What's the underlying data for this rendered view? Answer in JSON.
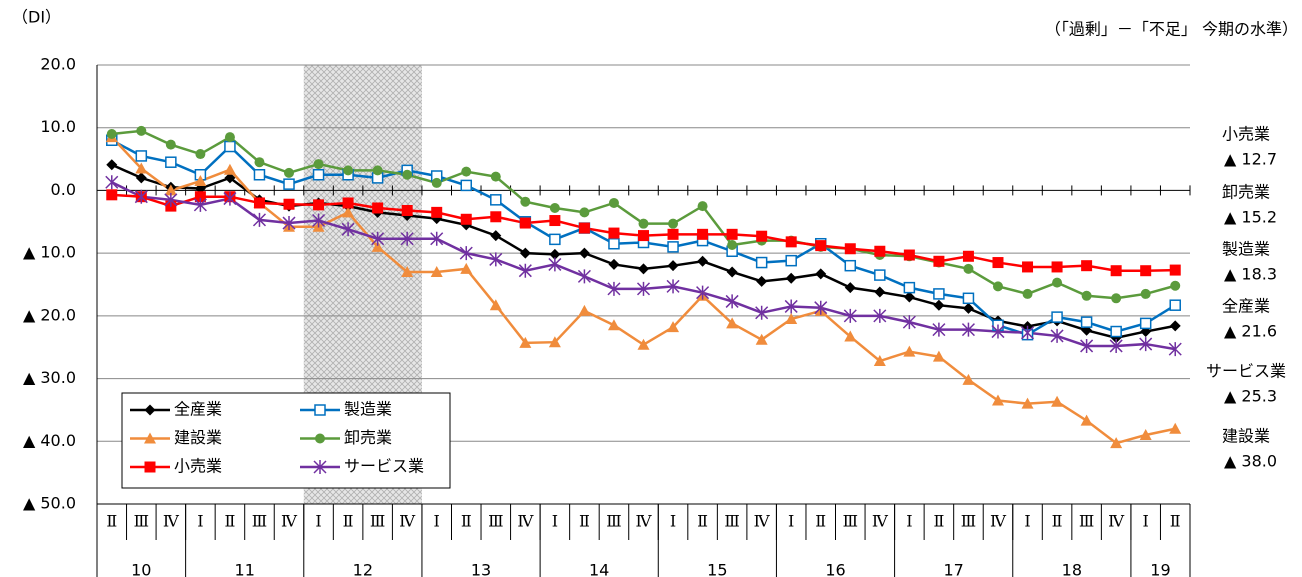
{
  "chart_data": {
    "type": "line",
    "unit_label": "（DI）",
    "note": "（「過剰」－「不足」 今期の水準）",
    "categories": [
      "Ⅱ",
      "Ⅲ",
      "Ⅳ",
      "Ⅰ",
      "Ⅱ",
      "Ⅲ",
      "Ⅳ",
      "Ⅰ",
      "Ⅱ",
      "Ⅲ",
      "Ⅳ",
      "Ⅰ",
      "Ⅱ",
      "Ⅲ",
      "Ⅳ",
      "Ⅰ",
      "Ⅱ",
      "Ⅲ",
      "Ⅳ",
      "Ⅰ",
      "Ⅱ",
      "Ⅲ",
      "Ⅳ",
      "Ⅰ",
      "Ⅱ",
      "Ⅲ",
      "Ⅳ",
      "Ⅰ",
      "Ⅱ",
      "Ⅲ",
      "Ⅳ",
      "Ⅰ",
      "Ⅱ",
      "Ⅲ",
      "Ⅳ",
      "Ⅰ",
      "Ⅱ"
    ],
    "x_groups": [
      {
        "label": "10",
        "span": 3
      },
      {
        "label": "11",
        "span": 4
      },
      {
        "label": "12",
        "span": 4
      },
      {
        "label": "13",
        "span": 4
      },
      {
        "label": "14",
        "span": 4
      },
      {
        "label": "15",
        "span": 4
      },
      {
        "label": "16",
        "span": 4
      },
      {
        "label": "17",
        "span": 4
      },
      {
        "label": "18",
        "span": 4
      },
      {
        "label": "19",
        "span": 2
      }
    ],
    "shaded_range": [
      7,
      10
    ],
    "ylim": [
      -50,
      20
    ],
    "yticks": [
      {
        "value": 20,
        "label": "20.0"
      },
      {
        "value": 10,
        "label": "10.0"
      },
      {
        "value": 0,
        "label": "0.0"
      },
      {
        "value": -10,
        "label": "▲ 10.0"
      },
      {
        "value": -20,
        "label": "▲ 20.0"
      },
      {
        "value": -30,
        "label": "▲ 30.0"
      },
      {
        "value": -40,
        "label": "▲ 40.0"
      },
      {
        "value": -50,
        "label": "▲ 50.0"
      }
    ],
    "grid": true,
    "series": [
      {
        "name": "全産業",
        "color": "#000000",
        "marker": "diamond",
        "values": [
          4.1,
          2,
          0.5,
          0.3,
          2,
          -1.5,
          -2.5,
          -2,
          -2.5,
          -3.5,
          -4,
          -4.5,
          -5.5,
          -7.2,
          -10,
          -10.2,
          -10,
          -11.8,
          -12.5,
          -12,
          -11.3,
          -13,
          -14.5,
          -14,
          -13.3,
          -15.5,
          -16.2,
          -17,
          -18.3,
          -18.8,
          -20.8,
          -21.7,
          -20.8,
          -22.3,
          -23.5,
          -22.5,
          -21.6
        ]
      },
      {
        "name": "製造業",
        "color": "#0070c0",
        "marker": "open-square",
        "values": [
          8,
          5.5,
          4.5,
          2.5,
          7,
          2.5,
          1,
          2.5,
          2.5,
          2,
          3.2,
          2.3,
          0.8,
          -1.5,
          -5,
          -7.8,
          -6,
          -8.5,
          -8.3,
          -9,
          -8,
          -9.7,
          -11.5,
          -11.2,
          -8.5,
          -12,
          -13.5,
          -15.5,
          -16.5,
          -17.2,
          -21.5,
          -23,
          -20.2,
          -21,
          -22.5,
          -21.2,
          -18.3
        ]
      },
      {
        "name": "建設業",
        "color": "#f08c3c",
        "marker": "triangle",
        "values": [
          8.5,
          3.5,
          0,
          1.5,
          3.3,
          -2,
          -5.8,
          -5.8,
          -3.5,
          -9,
          -13,
          -13,
          -12.5,
          -18.3,
          -24.3,
          -24.2,
          -19.2,
          -21.5,
          -24.6,
          -21.8,
          -16.8,
          -21.2,
          -23.8,
          -20.5,
          -19.2,
          -23.3,
          -27.2,
          -25.7,
          -26.5,
          -30.2,
          -33.5,
          -34,
          -33.7,
          -36.7,
          -40.3,
          -39,
          -38
        ]
      },
      {
        "name": "卸売業",
        "color": "#5b9b3c",
        "marker": "circle",
        "values": [
          9,
          9.5,
          7.3,
          5.8,
          8.5,
          4.5,
          2.8,
          4.2,
          3.2,
          3.2,
          2.5,
          1.2,
          3,
          2.2,
          -1.8,
          -2.8,
          -3.5,
          -2,
          -5.3,
          -5.3,
          -2.5,
          -8.7,
          -8,
          -8,
          -9,
          -9.3,
          -10.3,
          -10.5,
          -11.5,
          -12.5,
          -15.3,
          -16.5,
          -14.7,
          -16.8,
          -17.2,
          -16.5,
          -15.2
        ]
      },
      {
        "name": "小売業",
        "color": "#ff0000",
        "marker": "square",
        "values": [
          -0.7,
          -1,
          -2.5,
          -1,
          -1,
          -2,
          -2.2,
          -2.3,
          -2,
          -2.8,
          -3.2,
          -3.5,
          -4.6,
          -4.2,
          -5.2,
          -4.8,
          -6,
          -6.8,
          -7.2,
          -7,
          -7,
          -7,
          -7.3,
          -8.2,
          -8.8,
          -9.3,
          -9.7,
          -10.3,
          -11.3,
          -10.5,
          -11.5,
          -12.2,
          -12.2,
          -12,
          -12.8,
          -12.8,
          -12.7
        ]
      },
      {
        "name": "サービス業",
        "color": "#7030a0",
        "marker": "asterisk",
        "values": [
          1.3,
          -1,
          -1.5,
          -2.3,
          -1.3,
          -4.7,
          -5.2,
          -4.8,
          -6.2,
          -7.7,
          -7.7,
          -7.7,
          -10,
          -11,
          -12.8,
          -11.8,
          -13.7,
          -15.7,
          -15.7,
          -15.3,
          -16.3,
          -17.7,
          -19.5,
          -18.5,
          -18.7,
          -20,
          -20,
          -21,
          -22.2,
          -22.2,
          -22.5,
          -22.7,
          -23.2,
          -24.8,
          -24.8,
          -24.5,
          -25.3
        ]
      }
    ],
    "end_labels": [
      {
        "series": "小売業",
        "label": "▲ 12.7"
      },
      {
        "series": "卸売業",
        "label": "▲ 15.2"
      },
      {
        "series": "製造業",
        "label": "▲ 18.3"
      },
      {
        "series": "全産業",
        "label": "▲ 21.6"
      },
      {
        "series": "サービス業",
        "label": "▲ 25.3"
      },
      {
        "series": "建設業",
        "label": "▲ 38.0"
      }
    ]
  }
}
